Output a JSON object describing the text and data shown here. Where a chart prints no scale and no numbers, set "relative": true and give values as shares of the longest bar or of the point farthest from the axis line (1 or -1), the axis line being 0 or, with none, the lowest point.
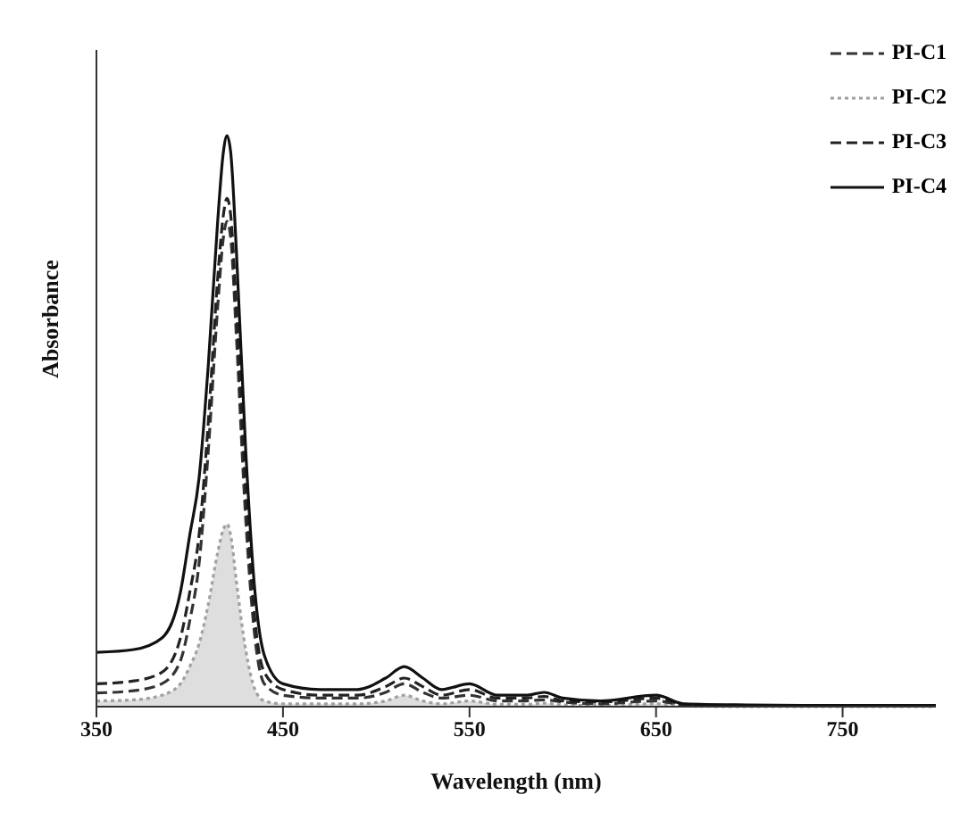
{
  "chart_data": {
    "type": "line",
    "relative": true,
    "xlabel": "Wavelength (nm)",
    "ylabel": "Absorbance",
    "x": [
      350,
      370,
      385,
      395,
      400,
      405,
      410,
      415,
      418,
      420,
      422,
      425,
      430,
      435,
      440,
      450,
      470,
      490,
      505,
      515,
      525,
      535,
      550,
      565,
      580,
      590,
      600,
      620,
      650,
      665,
      700,
      750,
      800
    ],
    "xlim": [
      350,
      800
    ],
    "xticks": [
      350,
      450,
      550,
      650,
      750
    ],
    "legend": "top right",
    "grid": false,
    "series": [
      {
        "name": "PI-C1",
        "color": "#333333",
        "line_style": "dashed",
        "values": [
          0.024,
          0.028,
          0.04,
          0.08,
          0.15,
          0.25,
          0.45,
          0.7,
          0.82,
          0.85,
          0.82,
          0.65,
          0.33,
          0.12,
          0.04,
          0.02,
          0.015,
          0.015,
          0.025,
          0.04,
          0.025,
          0.015,
          0.02,
          0.01,
          0.01,
          0.012,
          0.008,
          0.005,
          0.01,
          0.003,
          0.001,
          0.001,
          0.001
        ]
      },
      {
        "name": "PI-C2",
        "color": "#a0a0a0",
        "type": "area",
        "line_style": "dotted",
        "values": [
          0.01,
          0.012,
          0.02,
          0.04,
          0.07,
          0.11,
          0.18,
          0.27,
          0.31,
          0.32,
          0.3,
          0.22,
          0.1,
          0.03,
          0.01,
          0.005,
          0.005,
          0.005,
          0.01,
          0.02,
          0.01,
          0.005,
          0.01,
          0.004,
          0.004,
          0.006,
          0.003,
          0.002,
          0.005,
          0.001,
          0,
          0,
          0
        ]
      },
      {
        "name": "PI-C3",
        "color": "#222222",
        "line_style": "dashed",
        "values": [
          0.04,
          0.045,
          0.06,
          0.12,
          0.2,
          0.3,
          0.5,
          0.75,
          0.86,
          0.89,
          0.86,
          0.7,
          0.38,
          0.15,
          0.06,
          0.03,
          0.02,
          0.02,
          0.035,
          0.05,
          0.035,
          0.02,
          0.03,
          0.015,
          0.015,
          0.018,
          0.01,
          0.008,
          0.015,
          0.004,
          0.002,
          0.001,
          0.001
        ]
      },
      {
        "name": "PI-C4",
        "color": "#111111",
        "line_style": "solid",
        "values": [
          0.095,
          0.1,
          0.12,
          0.2,
          0.3,
          0.4,
          0.6,
          0.85,
          0.97,
          1.0,
          0.97,
          0.8,
          0.45,
          0.2,
          0.09,
          0.04,
          0.03,
          0.03,
          0.05,
          0.07,
          0.05,
          0.03,
          0.04,
          0.02,
          0.02,
          0.025,
          0.015,
          0.01,
          0.02,
          0.005,
          0.003,
          0.002,
          0.002
        ]
      }
    ]
  }
}
